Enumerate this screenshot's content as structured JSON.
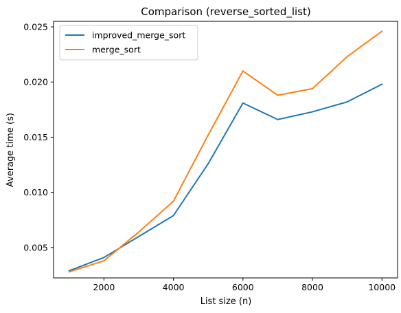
{
  "chart_data": {
    "type": "line",
    "title": "Comparison (reverse_sorted_list)",
    "xlabel": "List size (n)",
    "ylabel": "Average time (s)",
    "x": [
      1000,
      2000,
      3000,
      4000,
      5000,
      6000,
      7000,
      8000,
      9000,
      10000
    ],
    "xlim": [
      550,
      10450
    ],
    "ylim": [
      0.00225,
      0.0255
    ],
    "x_ticks": [
      2000,
      4000,
      6000,
      8000,
      10000
    ],
    "x_tick_labels": [
      "2000",
      "4000",
      "6000",
      "8000",
      "10000"
    ],
    "y_ticks": [
      0.005,
      0.01,
      0.015,
      0.02,
      0.025
    ],
    "y_tick_labels": [
      "0.005",
      "0.010",
      "0.015",
      "0.020",
      "0.025"
    ],
    "grid": false,
    "legend_position": "top-left",
    "series": [
      {
        "name": "improved_merge_sort",
        "color": "#1f77b4",
        "values": [
          0.0029,
          0.0041,
          0.006,
          0.0079,
          0.0126,
          0.0181,
          0.0166,
          0.0173,
          0.0182,
          0.0198
        ]
      },
      {
        "name": "merge_sort",
        "color": "#ff7f0e",
        "values": [
          0.0028,
          0.0038,
          0.0064,
          0.0092,
          0.0152,
          0.021,
          0.0188,
          0.0194,
          0.0223,
          0.0246
        ]
      }
    ]
  }
}
